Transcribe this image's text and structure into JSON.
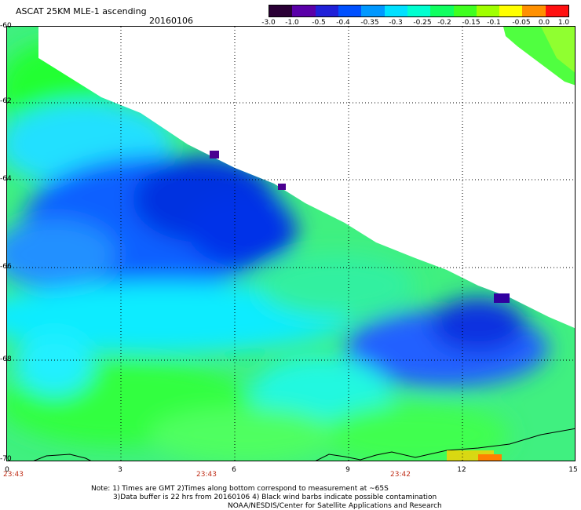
{
  "header": {
    "title": "ASCAT 25KM MLE-1 ascending",
    "date": "20160106"
  },
  "colorbar": {
    "labels": [
      "-3.0",
      "-1.0",
      "-0.5",
      "-0.4",
      "-0.35",
      "-0.3",
      "-0.25",
      "-0.2",
      "-0.15",
      "-0.1",
      "-0.05",
      "0.0",
      "1.0"
    ],
    "colors": [
      "#2a0035",
      "#5a00a8",
      "#2020d8",
      "#0050ff",
      "#0098ff",
      "#00e0ff",
      "#00ffd0",
      "#10ff60",
      "#40ff20",
      "#a0ff00",
      "#ffff00",
      "#ff9000",
      "#ff1010"
    ]
  },
  "axes": {
    "y_ticks": [
      "-60",
      "-62",
      "-64",
      "-66",
      "-68",
      "-70"
    ],
    "x_ticks": [
      "0",
      "3",
      "6",
      "9",
      "12",
      "15"
    ],
    "time_labels": [
      "23:43",
      "23:43",
      "23:42"
    ]
  },
  "footer": {
    "note1": "Note: 1) Times are GMT 2)Times along bottom correspond to measurement at ~65S",
    "note2": "3)Data buffer is 22 hrs from 20160106 4) Black wind barbs indicate possible contamination",
    "note3": "NOAA/NESDIS/Center for Satellite Applications and Research"
  }
}
